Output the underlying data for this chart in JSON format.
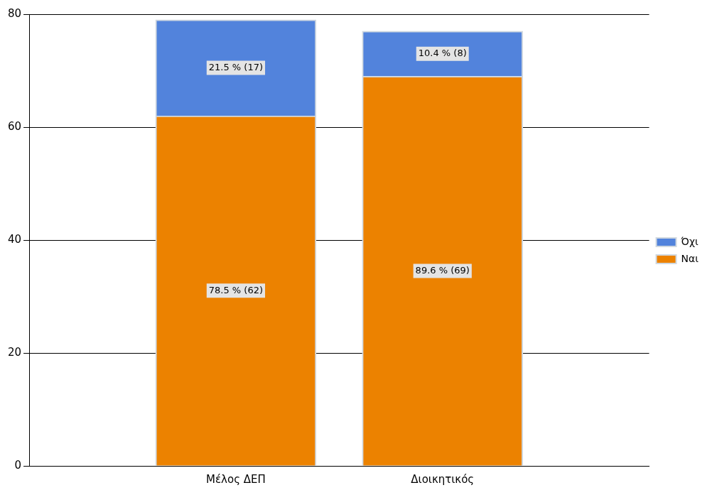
{
  "chart_data": {
    "type": "bar",
    "stacked": true,
    "categories": [
      "Μέλος ΔΕΠ",
      "Διοικητικός"
    ],
    "series": [
      {
        "name": "Ναι",
        "color": "#ec8200",
        "values": [
          62,
          69
        ],
        "value_labels": [
          "78.5 % (62)",
          "89.6 % (69)"
        ]
      },
      {
        "name": "Όχι",
        "color": "#5283dc",
        "values": [
          17,
          8
        ],
        "value_labels": [
          "21.5 % (17)",
          "10.4 % (8)"
        ]
      }
    ],
    "ylim": [
      0,
      80
    ],
    "yticks": [
      0,
      20,
      40,
      60,
      80
    ],
    "grid": "y",
    "legend": "right"
  }
}
